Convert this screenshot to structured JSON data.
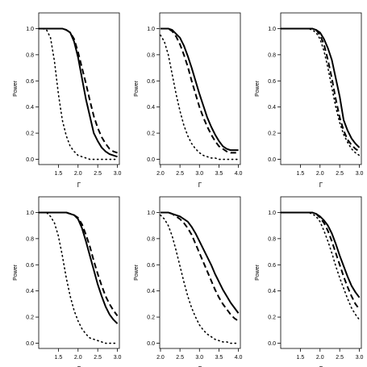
{
  "chart_data": [
    {
      "type": "line",
      "xlabel": "Γ",
      "ylabel": "Power",
      "xlim": [
        1.0,
        3.05
      ],
      "ylim": [
        -0.04,
        1.12
      ],
      "xticks": [
        "1.5",
        "2.0",
        "2.5",
        "3.0"
      ],
      "yticks": [
        "0.0",
        "0.2",
        "0.4",
        "0.6",
        "0.8",
        "1.0"
      ],
      "x": [
        1.0,
        1.1,
        1.2,
        1.3,
        1.4,
        1.5,
        1.6,
        1.7,
        1.8,
        1.9,
        2.0,
        2.1,
        2.2,
        2.3,
        2.4,
        2.5,
        2.6,
        2.7,
        2.8,
        2.9,
        3.0
      ],
      "series": [
        {
          "style": "solid",
          "values": [
            1.0,
            1.0,
            1.0,
            1.0,
            1.0,
            1.0,
            1.0,
            0.99,
            0.97,
            0.9,
            0.78,
            0.62,
            0.46,
            0.33,
            0.2,
            0.14,
            0.09,
            0.06,
            0.04,
            0.03,
            0.02
          ]
        },
        {
          "style": "dashed",
          "values": [
            1.0,
            1.0,
            1.0,
            1.0,
            1.0,
            1.0,
            1.0,
            0.99,
            0.97,
            0.92,
            0.82,
            0.7,
            0.58,
            0.45,
            0.33,
            0.24,
            0.17,
            0.12,
            0.08,
            0.06,
            0.05
          ]
        },
        {
          "style": "dotted",
          "values": [
            1.0,
            1.0,
            0.99,
            0.93,
            0.75,
            0.5,
            0.3,
            0.18,
            0.1,
            0.06,
            0.03,
            0.02,
            0.01,
            0.0,
            0.0,
            0.0,
            0.0,
            0.0,
            0.0,
            0.0,
            0.0
          ]
        }
      ]
    },
    {
      "type": "line",
      "xlabel": "Γ",
      "ylabel": "Power",
      "xlim": [
        1.98,
        4.05
      ],
      "ylim": [
        -0.04,
        1.12
      ],
      "xticks": [
        "2.0",
        "2.5",
        "3.0",
        "3.5",
        "4.0"
      ],
      "yticks": [
        "0.0",
        "0.2",
        "0.4",
        "0.6",
        "0.8",
        "1.0"
      ],
      "x": [
        2.0,
        2.1,
        2.2,
        2.3,
        2.4,
        2.5,
        2.6,
        2.7,
        2.8,
        2.9,
        3.0,
        3.1,
        3.2,
        3.3,
        3.4,
        3.5,
        3.6,
        3.7,
        3.8,
        3.9,
        4.0
      ],
      "series": [
        {
          "style": "solid",
          "values": [
            1.0,
            1.0,
            1.0,
            0.99,
            0.96,
            0.93,
            0.87,
            0.79,
            0.7,
            0.6,
            0.5,
            0.41,
            0.32,
            0.25,
            0.19,
            0.14,
            0.1,
            0.08,
            0.07,
            0.07,
            0.07
          ]
        },
        {
          "style": "dashed",
          "values": [
            1.0,
            1.0,
            1.0,
            0.98,
            0.94,
            0.88,
            0.8,
            0.71,
            0.6,
            0.5,
            0.4,
            0.32,
            0.25,
            0.19,
            0.14,
            0.1,
            0.08,
            0.06,
            0.05,
            0.05,
            0.05
          ]
        },
        {
          "style": "dotted",
          "values": [
            0.95,
            0.9,
            0.8,
            0.65,
            0.5,
            0.37,
            0.26,
            0.18,
            0.12,
            0.08,
            0.05,
            0.03,
            0.02,
            0.01,
            0.01,
            0.0,
            0.0,
            0.0,
            0.0,
            0.0,
            0.0
          ]
        }
      ]
    },
    {
      "type": "line",
      "xlabel": "Γ",
      "ylabel": "Power",
      "xlim": [
        1.0,
        3.05
      ],
      "ylim": [
        -0.04,
        1.12
      ],
      "xticks": [
        "1.5",
        "2.0",
        "2.5",
        "3.0"
      ],
      "yticks": [
        "0.0",
        "0.2",
        "0.4",
        "0.6",
        "0.8",
        "1.0"
      ],
      "x": [
        1.0,
        1.1,
        1.2,
        1.3,
        1.4,
        1.5,
        1.6,
        1.7,
        1.8,
        1.9,
        2.0,
        2.1,
        2.2,
        2.3,
        2.4,
        2.5,
        2.6,
        2.7,
        2.8,
        2.9,
        3.0
      ],
      "series": [
        {
          "style": "solid",
          "values": [
            1.0,
            1.0,
            1.0,
            1.0,
            1.0,
            1.0,
            1.0,
            1.0,
            1.0,
            0.99,
            0.97,
            0.92,
            0.85,
            0.76,
            0.62,
            0.48,
            0.3,
            0.22,
            0.16,
            0.12,
            0.09
          ]
        },
        {
          "style": "dashed",
          "values": [
            1.0,
            1.0,
            1.0,
            1.0,
            1.0,
            1.0,
            1.0,
            1.0,
            1.0,
            0.99,
            0.95,
            0.88,
            0.76,
            0.62,
            0.46,
            0.32,
            0.22,
            0.15,
            0.11,
            0.08,
            0.06
          ]
        },
        {
          "style": "dotted",
          "values": [
            1.0,
            1.0,
            1.0,
            1.0,
            1.0,
            1.0,
            1.0,
            1.0,
            0.99,
            0.97,
            0.92,
            0.83,
            0.7,
            0.55,
            0.4,
            0.28,
            0.19,
            0.13,
            0.08,
            0.05,
            0.03
          ]
        }
      ]
    },
    {
      "type": "line",
      "xlabel": "Γ",
      "ylabel": "Power",
      "xlim": [
        1.0,
        3.05
      ],
      "ylim": [
        -0.04,
        1.12
      ],
      "xticks": [
        "1.5",
        "2.0",
        "2.5",
        "3.0"
      ],
      "yticks": [
        "0.0",
        "0.2",
        "0.4",
        "0.6",
        "0.8",
        "1.0"
      ],
      "x": [
        1.0,
        1.1,
        1.2,
        1.3,
        1.4,
        1.5,
        1.6,
        1.7,
        1.8,
        1.9,
        2.0,
        2.1,
        2.2,
        2.3,
        2.4,
        2.5,
        2.6,
        2.7,
        2.8,
        2.9,
        3.0
      ],
      "series": [
        {
          "style": "solid",
          "values": [
            1.0,
            1.0,
            1.0,
            1.0,
            1.0,
            1.0,
            1.0,
            1.0,
            0.99,
            0.98,
            0.95,
            0.88,
            0.78,
            0.67,
            0.56,
            0.45,
            0.36,
            0.28,
            0.22,
            0.18,
            0.15
          ]
        },
        {
          "style": "dashed",
          "values": [
            1.0,
            1.0,
            1.0,
            1.0,
            1.0,
            1.0,
            1.0,
            1.0,
            0.99,
            0.98,
            0.96,
            0.91,
            0.83,
            0.74,
            0.63,
            0.53,
            0.44,
            0.36,
            0.3,
            0.25,
            0.21
          ]
        },
        {
          "style": "dotted",
          "values": [
            1.0,
            1.0,
            1.0,
            0.97,
            0.92,
            0.82,
            0.67,
            0.5,
            0.36,
            0.25,
            0.17,
            0.11,
            0.07,
            0.04,
            0.03,
            0.02,
            0.01,
            0.0,
            0.0,
            0.0,
            0.0
          ]
        }
      ]
    },
    {
      "type": "line",
      "xlabel": "Γ",
      "ylabel": "Power",
      "xlim": [
        1.98,
        4.05
      ],
      "ylim": [
        -0.04,
        1.12
      ],
      "xticks": [
        "2.0",
        "2.5",
        "3.0",
        "3.5",
        "4.0"
      ],
      "yticks": [
        "0.0",
        "0.2",
        "0.4",
        "0.6",
        "0.8",
        "1.0"
      ],
      "x": [
        2.0,
        2.1,
        2.2,
        2.3,
        2.4,
        2.5,
        2.6,
        2.7,
        2.8,
        2.9,
        3.0,
        3.1,
        3.2,
        3.3,
        3.4,
        3.5,
        3.6,
        3.7,
        3.8,
        3.9,
        4.0
      ],
      "series": [
        {
          "style": "solid",
          "values": [
            1.0,
            1.0,
            1.0,
            0.99,
            0.98,
            0.97,
            0.95,
            0.93,
            0.89,
            0.84,
            0.78,
            0.72,
            0.66,
            0.6,
            0.53,
            0.47,
            0.41,
            0.36,
            0.31,
            0.27,
            0.23
          ]
        },
        {
          "style": "dashed",
          "values": [
            1.0,
            1.0,
            1.0,
            0.99,
            0.97,
            0.95,
            0.92,
            0.88,
            0.83,
            0.76,
            0.69,
            0.62,
            0.55,
            0.48,
            0.41,
            0.35,
            0.3,
            0.26,
            0.22,
            0.19,
            0.17
          ]
        },
        {
          "style": "dotted",
          "values": [
            0.98,
            0.95,
            0.9,
            0.82,
            0.71,
            0.59,
            0.47,
            0.36,
            0.27,
            0.2,
            0.14,
            0.1,
            0.07,
            0.05,
            0.03,
            0.02,
            0.01,
            0.01,
            0.0,
            0.0,
            0.0
          ]
        }
      ]
    },
    {
      "type": "line",
      "xlabel": "Γ",
      "ylabel": "Power",
      "xlim": [
        1.0,
        3.05
      ],
      "ylim": [
        -0.04,
        1.12
      ],
      "xticks": [
        "1.5",
        "2.0",
        "2.5",
        "3.0"
      ],
      "yticks": [
        "0.0",
        "0.2",
        "0.4",
        "0.6",
        "0.8",
        "1.0"
      ],
      "x": [
        1.0,
        1.1,
        1.2,
        1.3,
        1.4,
        1.5,
        1.6,
        1.7,
        1.8,
        1.9,
        2.0,
        2.1,
        2.2,
        2.3,
        2.4,
        2.5,
        2.6,
        2.7,
        2.8,
        2.9,
        3.0
      ],
      "series": [
        {
          "style": "solid",
          "values": [
            1.0,
            1.0,
            1.0,
            1.0,
            1.0,
            1.0,
            1.0,
            1.0,
            1.0,
            0.99,
            0.97,
            0.94,
            0.9,
            0.84,
            0.76,
            0.67,
            0.59,
            0.51,
            0.44,
            0.39,
            0.35
          ]
        },
        {
          "style": "dashed",
          "values": [
            1.0,
            1.0,
            1.0,
            1.0,
            1.0,
            1.0,
            1.0,
            1.0,
            1.0,
            0.99,
            0.96,
            0.92,
            0.86,
            0.78,
            0.69,
            0.6,
            0.51,
            0.43,
            0.36,
            0.3,
            0.26
          ]
        },
        {
          "style": "dotted",
          "values": [
            1.0,
            1.0,
            1.0,
            1.0,
            1.0,
            1.0,
            1.0,
            1.0,
            0.99,
            0.97,
            0.93,
            0.86,
            0.78,
            0.69,
            0.59,
            0.5,
            0.42,
            0.34,
            0.27,
            0.22,
            0.18
          ]
        }
      ]
    }
  ]
}
